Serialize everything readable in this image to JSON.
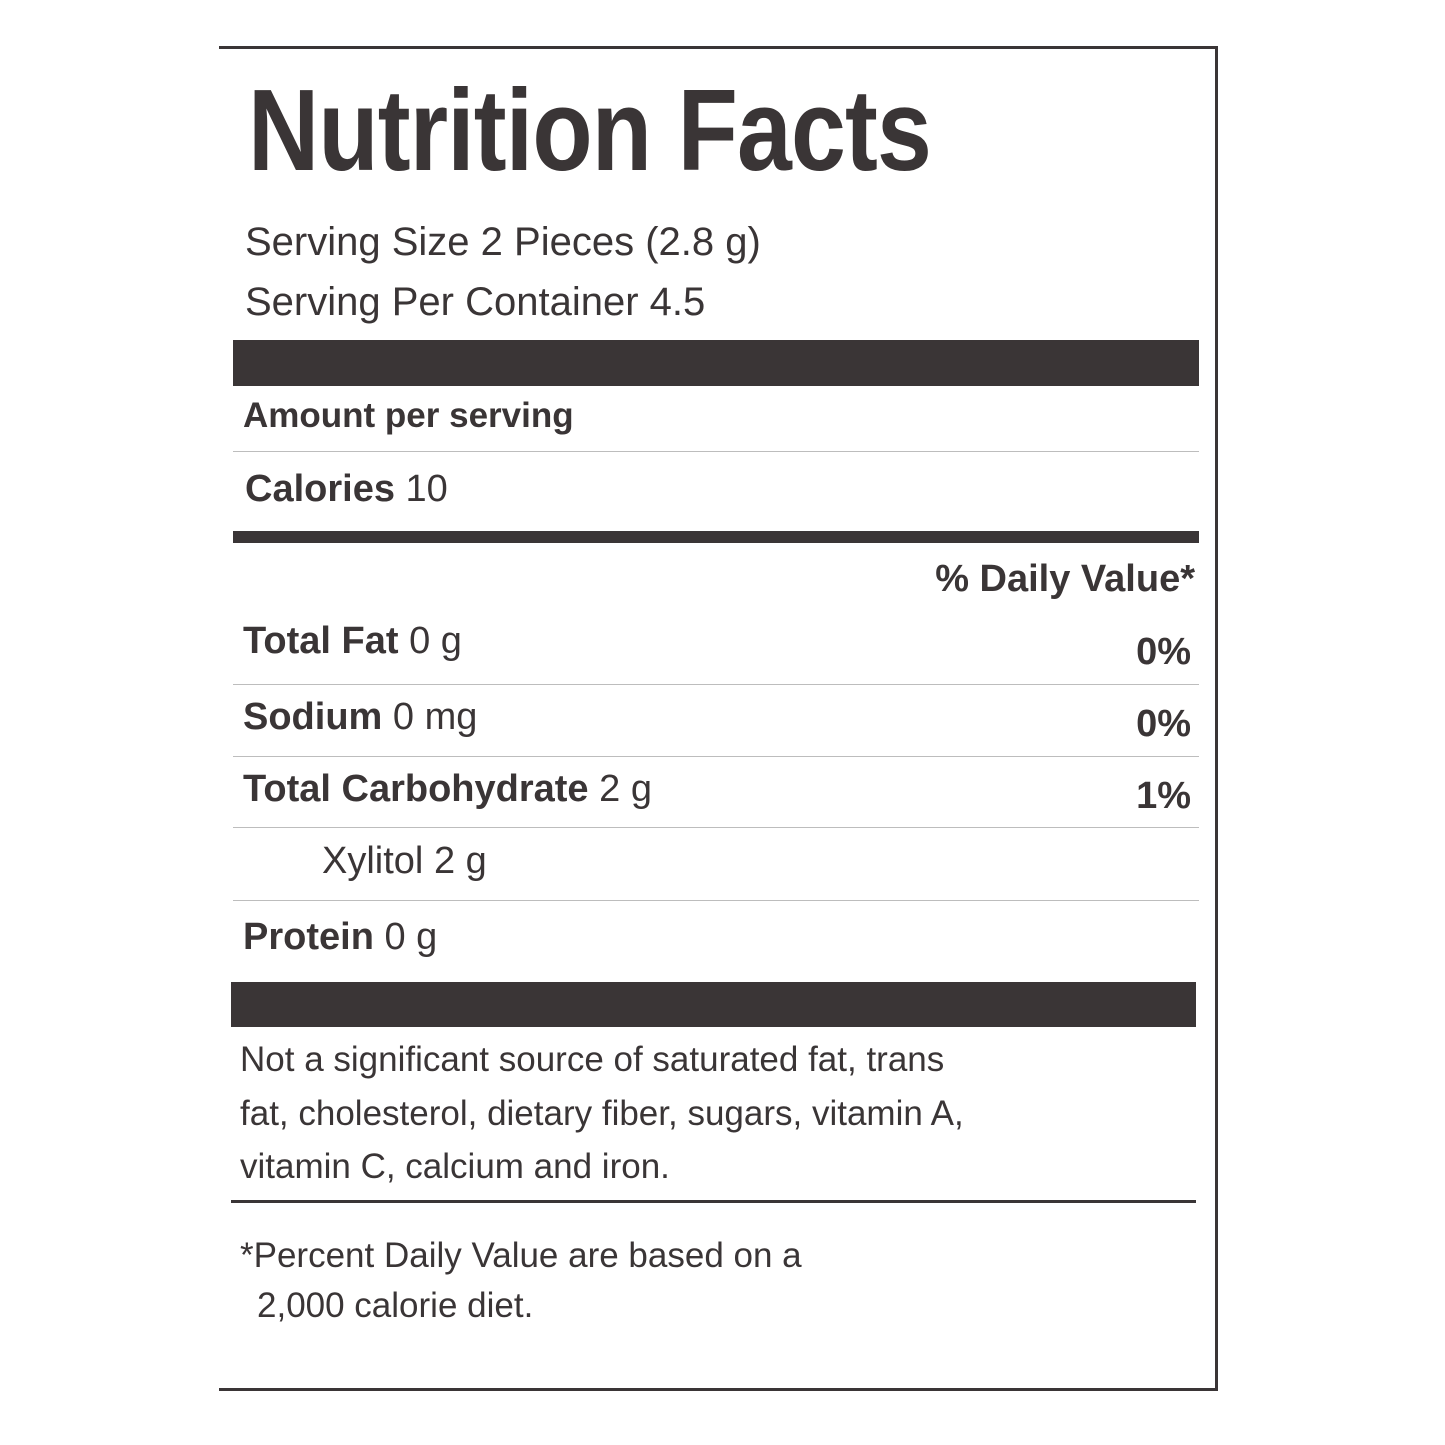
{
  "label": {
    "title": "Nutrition Facts",
    "serving_size": "Serving Size 2 Pieces (2.8 g)",
    "servings_per_container": "Serving Per Container 4.5",
    "amount_per_serving": "Amount per serving",
    "calories": {
      "label": "Calories",
      "value": "10"
    },
    "daily_value_header": "% Daily Value*",
    "nutrients": [
      {
        "name": "Total Fat",
        "amount": "0 g",
        "dv": "0%"
      },
      {
        "name": "Sodium",
        "amount": "0 mg",
        "dv": "0%"
      },
      {
        "name": "Total Carbohydrate",
        "amount": "2 g",
        "dv": "1%"
      },
      {
        "name": "Xylitol",
        "amount": "2 g",
        "dv": ""
      },
      {
        "name": "Protein",
        "amount": "0 g",
        "dv": ""
      }
    ],
    "not_significant": [
      "Not a significant source of saturated fat, trans",
      "fat, cholesterol, dietary fiber, sugars, vitamin A,",
      "vitamin C, calcium and iron."
    ],
    "footnote": [
      "*Percent Daily Value are based on a",
      "2,000 calorie diet."
    ]
  }
}
